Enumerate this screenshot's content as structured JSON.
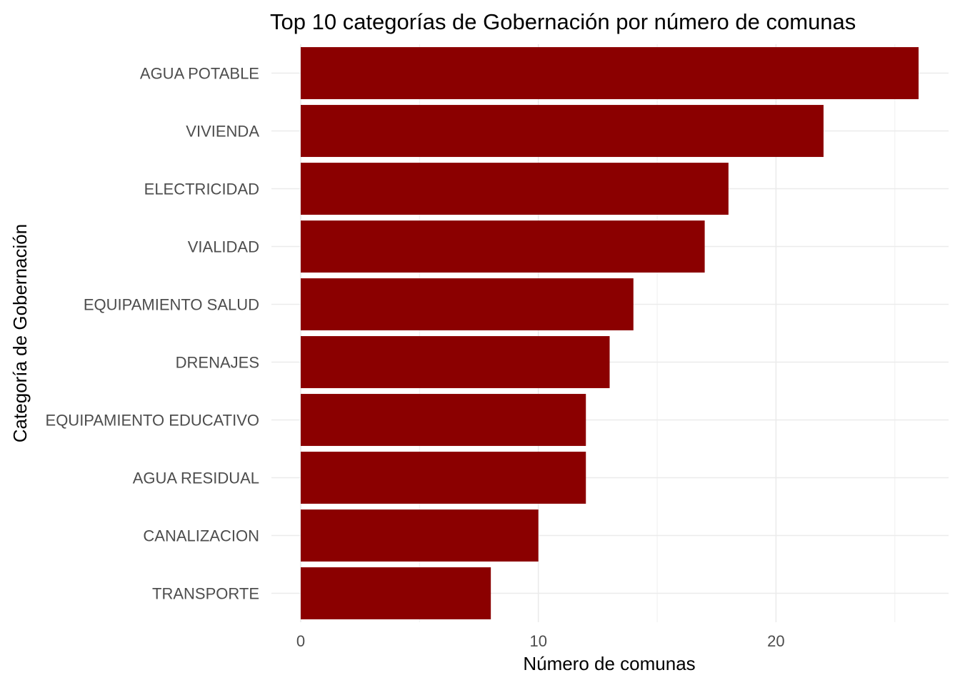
{
  "chart_data": {
    "type": "bar",
    "orientation": "horizontal",
    "title": "Top 10 categorías de Gobernación por número de comunas",
    "xlabel": "Número de comunas",
    "ylabel": "Categoría de Gobernación",
    "categories": [
      "AGUA POTABLE",
      "VIVIENDA",
      "ELECTRICIDAD",
      "VIALIDAD",
      "EQUIPAMIENTO SALUD",
      "DRENAJES",
      "EQUIPAMIENTO EDUCATIVO",
      "AGUA RESIDUAL",
      "CANALIZACION",
      "TRANSPORTE"
    ],
    "values": [
      26,
      22,
      18,
      17,
      14,
      13,
      12,
      12,
      10,
      8
    ],
    "xlim": [
      0,
      27
    ],
    "x_ticks": [
      0,
      10,
      20
    ],
    "x_minor_ticks": [
      5,
      15,
      25
    ],
    "bar_color": "#8b0000",
    "grid": true,
    "legend": "none"
  }
}
